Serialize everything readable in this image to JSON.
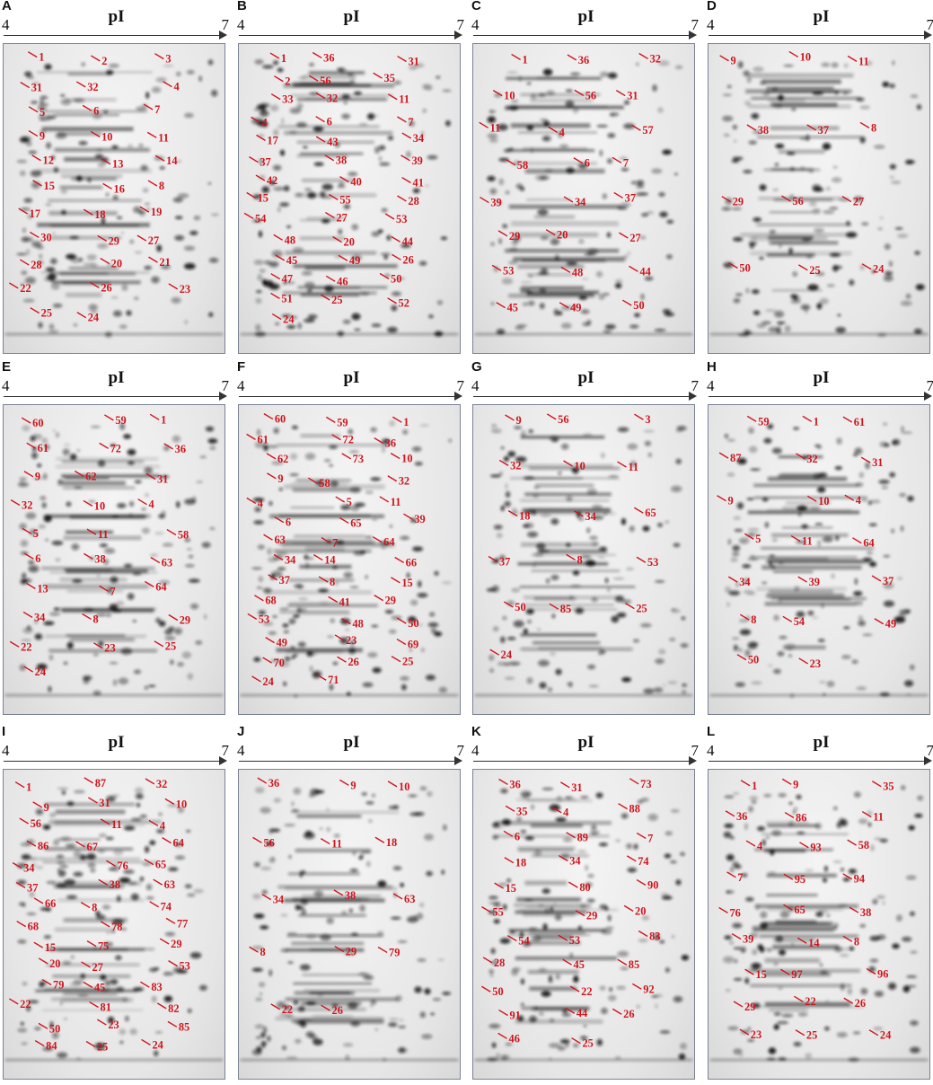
{
  "figure": {
    "axis_label": "pI",
    "ph_min": "4",
    "ph_max": "7",
    "colors": {
      "label": "#d0141b",
      "gel_border": "#7a8296",
      "protein": "#1a1a1a"
    },
    "panels": [
      {
        "letter": "A",
        "labels": [
          "1",
          "2",
          "3",
          "31",
          "32",
          "4",
          "5",
          "6",
          "7",
          "9",
          "10",
          "11",
          "12",
          "13",
          "14",
          "15",
          "16",
          "8",
          "17",
          "18",
          "19",
          "30",
          "29",
          "27",
          "28",
          "20",
          "21",
          "22",
          "26",
          "23",
          "25",
          "24"
        ]
      },
      {
        "letter": "B",
        "labels": [
          "1",
          "36",
          "31",
          "2",
          "56",
          "35",
          "33",
          "32",
          "11",
          "4",
          "6",
          "7",
          "17",
          "43",
          "34",
          "37",
          "38",
          "39",
          "42",
          "40",
          "41",
          "15",
          "55",
          "28",
          "54",
          "27",
          "53",
          "48",
          "20",
          "44",
          "45",
          "49",
          "26",
          "47",
          "46",
          "50",
          "51",
          "25",
          "52",
          "24"
        ]
      },
      {
        "letter": "C",
        "labels": [
          "1",
          "36",
          "32",
          "10",
          "56",
          "31",
          "11",
          "4",
          "57",
          "58",
          "6",
          "7",
          "39",
          "34",
          "37",
          "29",
          "20",
          "27",
          "53",
          "48",
          "44",
          "45",
          "49",
          "50"
        ]
      },
      {
        "letter": "D",
        "labels": [
          "9",
          "10",
          "11",
          "38",
          "37",
          "8",
          "29",
          "56",
          "27",
          "50",
          "25",
          "24"
        ]
      },
      {
        "letter": "E",
        "labels": [
          "60",
          "59",
          "1",
          "61",
          "72",
          "36",
          "9",
          "62",
          "31",
          "32",
          "10",
          "4",
          "5",
          "11",
          "58",
          "6",
          "38",
          "63",
          "13",
          "7",
          "64",
          "34",
          "8",
          "29",
          "22",
          "23",
          "25",
          "24"
        ]
      },
      {
        "letter": "F",
        "labels": [
          "60",
          "59",
          "1",
          "61",
          "72",
          "36",
          "62",
          "73",
          "10",
          "9",
          "58",
          "32",
          "4",
          "5",
          "11",
          "6",
          "65",
          "39",
          "63",
          "7",
          "64",
          "34",
          "14",
          "66",
          "37",
          "8",
          "15",
          "68",
          "41",
          "29",
          "53",
          "48",
          "50",
          "49",
          "23",
          "69",
          "70",
          "26",
          "25",
          "24",
          "71"
        ]
      },
      {
        "letter": "G",
        "labels": [
          "9",
          "56",
          "3",
          "32",
          "10",
          "11",
          "18",
          "34",
          "65",
          "37",
          "8",
          "53",
          "50",
          "85",
          "25",
          "24"
        ]
      },
      {
        "letter": "H",
        "labels": [
          "59",
          "1",
          "61",
          "87",
          "32",
          "31",
          "9",
          "10",
          "4",
          "5",
          "11",
          "64",
          "34",
          "39",
          "37",
          "8",
          "54",
          "49",
          "50",
          "23"
        ]
      },
      {
        "letter": "I",
        "labels": [
          "1",
          "87",
          "32",
          "9",
          "31",
          "10",
          "56",
          "11",
          "4",
          "86",
          "67",
          "64",
          "34",
          "76",
          "65",
          "37",
          "38",
          "63",
          "66",
          "8",
          "74",
          "68",
          "78",
          "77",
          "15",
          "75",
          "29",
          "20",
          "27",
          "53",
          "79",
          "45",
          "83",
          "22",
          "81",
          "82",
          "50",
          "23",
          "85",
          "84",
          "25",
          "24"
        ]
      },
      {
        "letter": "J",
        "labels": [
          "36",
          "9",
          "10",
          "56",
          "11",
          "18",
          "34",
          "38",
          "63",
          "8",
          "29",
          "79",
          "22",
          "26"
        ]
      },
      {
        "letter": "K",
        "labels": [
          "36",
          "31",
          "73",
          "35",
          "4",
          "88",
          "6",
          "89",
          "7",
          "18",
          "34",
          "74",
          "15",
          "80",
          "90",
          "55",
          "29",
          "20",
          "54",
          "53",
          "83",
          "28",
          "45",
          "85",
          "50",
          "22",
          "92",
          "91",
          "44",
          "26",
          "46",
          "25"
        ]
      },
      {
        "letter": "L",
        "labels": [
          "1",
          "9",
          "35",
          "36",
          "86",
          "11",
          "4",
          "93",
          "58",
          "7",
          "95",
          "94",
          "76",
          "65",
          "38",
          "39",
          "14",
          "8",
          "15",
          "97",
          "96",
          "29",
          "22",
          "26",
          "23",
          "25",
          "24"
        ]
      }
    ]
  }
}
